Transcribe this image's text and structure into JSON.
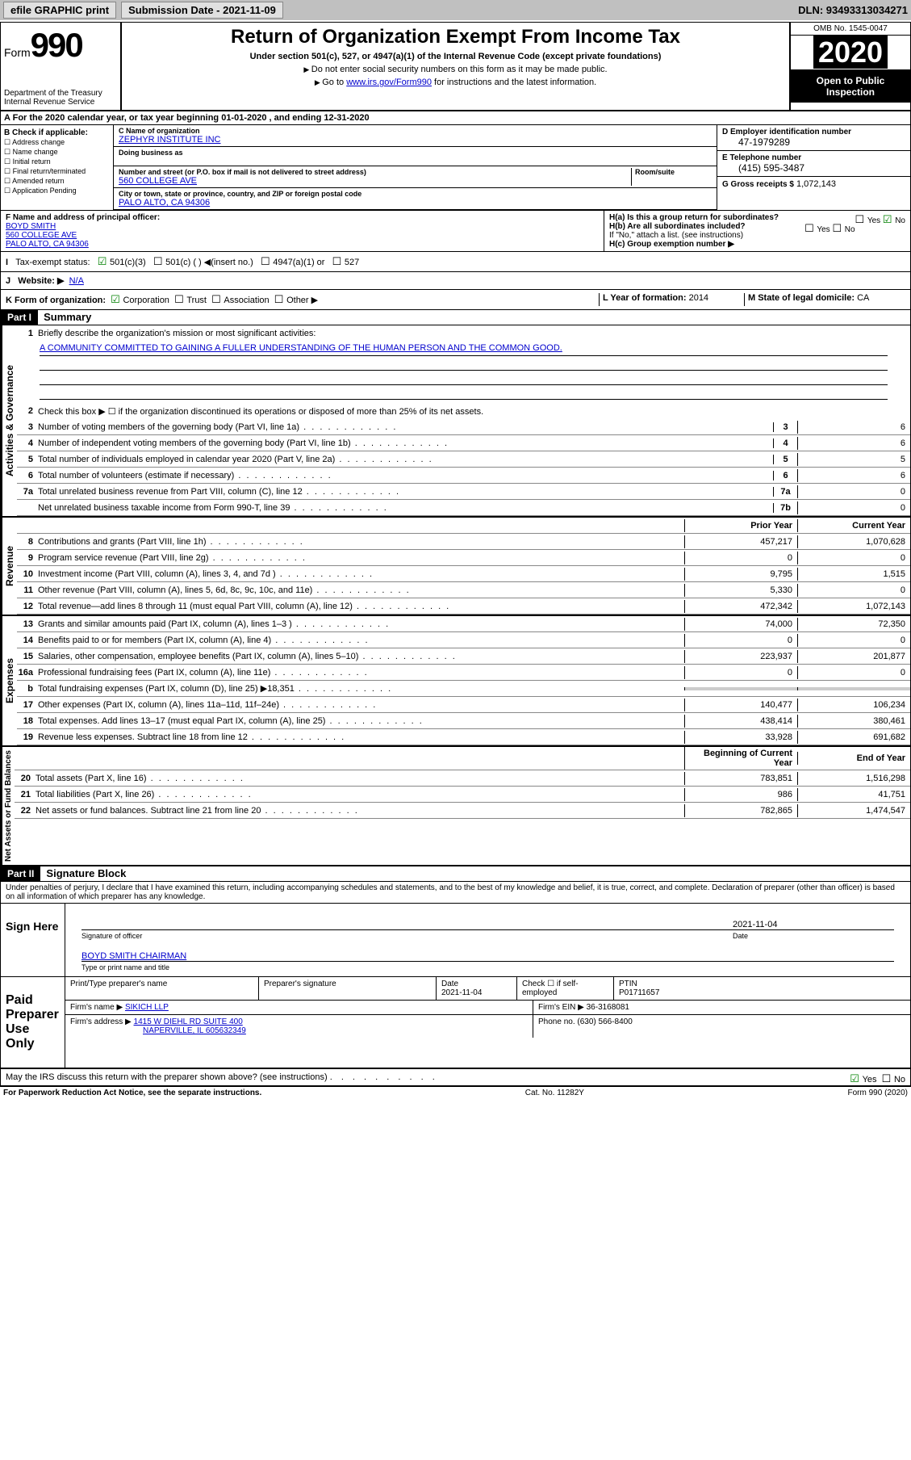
{
  "topbar": {
    "efile": "efile GRAPHIC print",
    "sub_label": "Submission Date - 2021-11-09",
    "dln": "DLN: 93493313034271"
  },
  "header": {
    "form_label": "Form",
    "form_num": "990",
    "dept": "Department of the Treasury\nInternal Revenue Service",
    "title": "Return of Organization Exempt From Income Tax",
    "subtitle": "Under section 501(c), 527, or 4947(a)(1) of the Internal Revenue Code (except private foundations)",
    "note1": "Do not enter social security numbers on this form as it may be made public.",
    "note2": "Go to ",
    "link": "www.irs.gov/Form990",
    "note2b": " for instructions and the latest information.",
    "omb": "OMB No. 1545-0047",
    "year": "2020",
    "open": "Open to Public Inspection"
  },
  "rowA": "For the 2020 calendar year, or tax year beginning 01-01-2020   , and ending 12-31-2020",
  "boxB": {
    "hdr": "B Check if applicable:",
    "items": [
      "Address change",
      "Name change",
      "Initial return",
      "Final return/terminated",
      "Amended return",
      "Application Pending"
    ]
  },
  "boxC": {
    "name_lbl": "C Name of organization",
    "name": "ZEPHYR INSTITUTE INC",
    "dba_lbl": "Doing business as",
    "addr_lbl": "Number and street (or P.O. box if mail is not delivered to street address)",
    "room_lbl": "Room/suite",
    "addr": "560 COLLEGE AVE",
    "city_lbl": "City or town, state or province, country, and ZIP or foreign postal code",
    "city": "PALO ALTO, CA  94306"
  },
  "boxD": {
    "lbl": "D Employer identification number",
    "val": "47-1979289"
  },
  "boxE": {
    "lbl": "E Telephone number",
    "val": "(415) 595-3487"
  },
  "boxG": {
    "lbl": "G Gross receipts $",
    "val": "1,072,143"
  },
  "boxF": {
    "lbl": "F Name and address of principal officer:",
    "name": "BOYD SMITH",
    "addr1": "560 COLLEGE AVE",
    "addr2": "PALO ALTO, CA  94306"
  },
  "boxH": {
    "ha": "H(a)  Is this a group return for subordinates?",
    "hb": "H(b)  Are all subordinates included?",
    "hnote": "If \"No,\" attach a list. (see instructions)",
    "hc": "H(c)  Group exemption number ▶",
    "yes": "Yes",
    "no": "No"
  },
  "rowI": {
    "lbl": "Tax-exempt status:",
    "opts": [
      "501(c)(3)",
      "501(c) (  ) ◀(insert no.)",
      "4947(a)(1) or",
      "527"
    ]
  },
  "rowJ": {
    "lbl": "Website: ▶",
    "val": "N/A"
  },
  "rowK": {
    "lbl": "K Form of organization:",
    "opts": [
      "Corporation",
      "Trust",
      "Association",
      "Other ▶"
    ],
    "l_lbl": "L Year of formation:",
    "l_val": "2014",
    "m_lbl": "M State of legal domicile:",
    "m_val": "CA"
  },
  "part1": {
    "hdr": "Part I",
    "title": "Summary",
    "side_gov": "Activities & Governance",
    "side_rev": "Revenue",
    "side_exp": "Expenses",
    "side_net": "Net Assets or Fund Balances",
    "q1": "Briefly describe the organization's mission or most significant activities:",
    "mission": "A COMMUNITY COMMITTED TO GAINING A FULLER UNDERSTANDING OF THE HUMAN PERSON AND THE COMMON GOOD.",
    "q2": "Check this box ▶ ☐  if the organization discontinued its operations or disposed of more than 25% of its net assets.",
    "lines_gov": [
      {
        "n": "3",
        "d": "Number of voting members of the governing body (Part VI, line 1a)",
        "c": "3",
        "v": "6"
      },
      {
        "n": "4",
        "d": "Number of independent voting members of the governing body (Part VI, line 1b)",
        "c": "4",
        "v": "6"
      },
      {
        "n": "5",
        "d": "Total number of individuals employed in calendar year 2020 (Part V, line 2a)",
        "c": "5",
        "v": "5"
      },
      {
        "n": "6",
        "d": "Total number of volunteers (estimate if necessary)",
        "c": "6",
        "v": "6"
      },
      {
        "n": "7a",
        "d": "Total unrelated business revenue from Part VIII, column (C), line 12",
        "c": "7a",
        "v": "0"
      },
      {
        "n": "",
        "d": "Net unrelated business taxable income from Form 990-T, line 39",
        "c": "7b",
        "v": "0"
      }
    ],
    "col_prior": "Prior Year",
    "col_curr": "Current Year",
    "lines_rev": [
      {
        "n": "8",
        "d": "Contributions and grants (Part VIII, line 1h)",
        "p": "457,217",
        "c": "1,070,628"
      },
      {
        "n": "9",
        "d": "Program service revenue (Part VIII, line 2g)",
        "p": "0",
        "c": "0"
      },
      {
        "n": "10",
        "d": "Investment income (Part VIII, column (A), lines 3, 4, and 7d )",
        "p": "9,795",
        "c": "1,515"
      },
      {
        "n": "11",
        "d": "Other revenue (Part VIII, column (A), lines 5, 6d, 8c, 9c, 10c, and 11e)",
        "p": "5,330",
        "c": "0"
      },
      {
        "n": "12",
        "d": "Total revenue—add lines 8 through 11 (must equal Part VIII, column (A), line 12)",
        "p": "472,342",
        "c": "1,072,143"
      }
    ],
    "lines_exp": [
      {
        "n": "13",
        "d": "Grants and similar amounts paid (Part IX, column (A), lines 1–3 )",
        "p": "74,000",
        "c": "72,350"
      },
      {
        "n": "14",
        "d": "Benefits paid to or for members (Part IX, column (A), line 4)",
        "p": "0",
        "c": "0"
      },
      {
        "n": "15",
        "d": "Salaries, other compensation, employee benefits (Part IX, column (A), lines 5–10)",
        "p": "223,937",
        "c": "201,877"
      },
      {
        "n": "16a",
        "d": "Professional fundraising fees (Part IX, column (A), line 11e)",
        "p": "0",
        "c": "0"
      },
      {
        "n": "b",
        "d": "Total fundraising expenses (Part IX, column (D), line 25) ▶18,351",
        "p": "",
        "c": ""
      },
      {
        "n": "17",
        "d": "Other expenses (Part IX, column (A), lines 11a–11d, 11f–24e)",
        "p": "140,477",
        "c": "106,234"
      },
      {
        "n": "18",
        "d": "Total expenses. Add lines 13–17 (must equal Part IX, column (A), line 25)",
        "p": "438,414",
        "c": "380,461"
      },
      {
        "n": "19",
        "d": "Revenue less expenses. Subtract line 18 from line 12",
        "p": "33,928",
        "c": "691,682"
      }
    ],
    "col_beg": "Beginning of Current Year",
    "col_end": "End of Year",
    "lines_net": [
      {
        "n": "20",
        "d": "Total assets (Part X, line 16)",
        "p": "783,851",
        "c": "1,516,298"
      },
      {
        "n": "21",
        "d": "Total liabilities (Part X, line 26)",
        "p": "986",
        "c": "41,751"
      },
      {
        "n": "22",
        "d": "Net assets or fund balances. Subtract line 21 from line 20",
        "p": "782,865",
        "c": "1,474,547"
      }
    ]
  },
  "part2": {
    "hdr": "Part II",
    "title": "Signature Block",
    "decl": "Under penalties of perjury, I declare that I have examined this return, including accompanying schedules and statements, and to the best of my knowledge and belief, it is true, correct, and complete. Declaration of preparer (other than officer) is based on all information of which preparer has any knowledge.",
    "sign_here": "Sign Here",
    "sig_officer": "Signature of officer",
    "date_lbl": "Date",
    "sig_date": "2021-11-04",
    "officer": "BOYD SMITH CHAIRMAN",
    "type_name": "Type or print name and title",
    "paid_prep": "Paid Preparer Use Only",
    "prep_name_lbl": "Print/Type preparer's name",
    "prep_sig_lbl": "Preparer's signature",
    "prep_date_lbl": "Date",
    "prep_date": "2021-11-04",
    "self_emp": "Check ☐ if self-employed",
    "ptin_lbl": "PTIN",
    "ptin": "P01711657",
    "firm_name_lbl": "Firm's name   ▶",
    "firm_name": "SIKICH LLP",
    "firm_ein_lbl": "Firm's EIN ▶",
    "firm_ein": "36-3168081",
    "firm_addr_lbl": "Firm's address ▶",
    "firm_addr1": "1415 W DIEHL RD SUITE 400",
    "firm_addr2": "NAPERVILLE, IL  605632349",
    "phone_lbl": "Phone no.",
    "phone": "(630) 566-8400",
    "discuss": "May the IRS discuss this return with the preparer shown above? (see instructions)",
    "yes": "Yes",
    "no": "No"
  },
  "footer": {
    "left": "For Paperwork Reduction Act Notice, see the separate instructions.",
    "mid": "Cat. No. 11282Y",
    "right": "Form 990 (2020)"
  }
}
